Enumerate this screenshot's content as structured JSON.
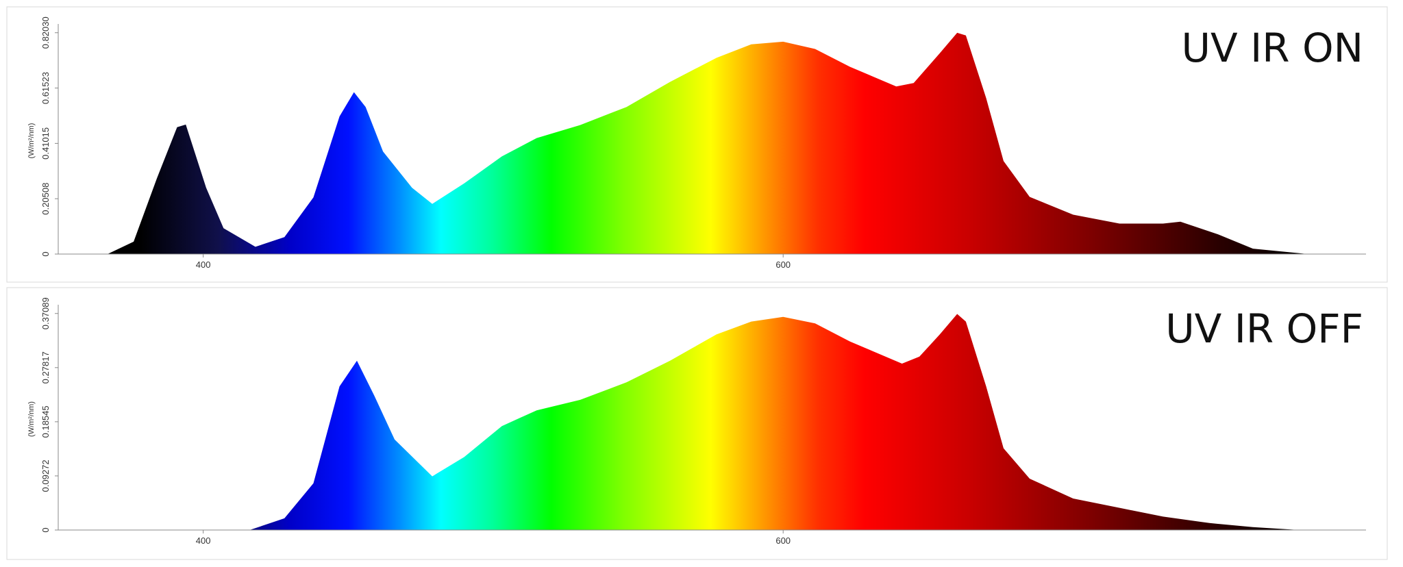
{
  "chart_data": [
    {
      "type": "area",
      "annotation": "UV IR ON",
      "ylabel": "(W/m²/nm)",
      "x": [
        367,
        376,
        384,
        391,
        394,
        401,
        407,
        418,
        428,
        438,
        447,
        452,
        456,
        462,
        472,
        479,
        490,
        503,
        515,
        530,
        546,
        561,
        577,
        589,
        600,
        611,
        623,
        639,
        645,
        654,
        660,
        663,
        670,
        676,
        685,
        700,
        716,
        731,
        737,
        750,
        762,
        778,
        781
      ],
      "values": [
        0,
        0.046,
        0.28,
        0.47,
        0.48,
        0.246,
        0.096,
        0.027,
        0.063,
        0.21,
        0.51,
        0.6,
        0.545,
        0.38,
        0.246,
        0.186,
        0.262,
        0.362,
        0.43,
        0.478,
        0.545,
        0.638,
        0.727,
        0.777,
        0.787,
        0.76,
        0.694,
        0.621,
        0.634,
        0.744,
        0.82,
        0.81,
        0.578,
        0.345,
        0.212,
        0.146,
        0.113,
        0.113,
        0.12,
        0.073,
        0.02,
        0.003,
        0
      ],
      "xlim": [
        350,
        801
      ],
      "xticks": [
        400,
        600
      ],
      "ylim": [
        0,
        0.84
      ],
      "yticks": [
        0,
        0.20508,
        0.41015,
        0.61523,
        {
          "value": 0.8203,
          "label": "0.82030"
        }
      ]
    },
    {
      "type": "area",
      "annotation": "UV IR OFF",
      "ylabel": "(W/m²/nm)",
      "x": [
        416,
        428,
        438,
        447,
        453,
        459,
        466,
        479,
        490,
        503,
        515,
        530,
        546,
        561,
        577,
        589,
        600,
        611,
        623,
        641,
        647,
        654,
        660,
        663,
        670,
        676,
        685,
        700,
        716,
        731,
        747,
        762,
        778
      ],
      "values": [
        0,
        0.02,
        0.08,
        0.246,
        0.29,
        0.23,
        0.155,
        0.092,
        0.125,
        0.178,
        0.205,
        0.223,
        0.253,
        0.29,
        0.335,
        0.357,
        0.365,
        0.354,
        0.323,
        0.285,
        0.297,
        0.335,
        0.37,
        0.357,
        0.246,
        0.14,
        0.088,
        0.054,
        0.038,
        0.023,
        0.012,
        0.005,
        0
      ],
      "xlim": [
        350,
        801
      ],
      "xticks": [
        400,
        600
      ],
      "ylim": [
        0,
        0.38
      ],
      "yticks": [
        0,
        0.09272,
        0.18545,
        0.27817,
        0.37089
      ]
    }
  ],
  "color_stops": [
    {
      "x": 378,
      "color": "#000000"
    },
    {
      "x": 405,
      "color": "#10104a"
    },
    {
      "x": 430,
      "color": "#0000c8"
    },
    {
      "x": 450,
      "color": "#0010ff"
    },
    {
      "x": 468,
      "color": "#0090ff"
    },
    {
      "x": 482,
      "color": "#00ffff"
    },
    {
      "x": 500,
      "color": "#00ff99"
    },
    {
      "x": 520,
      "color": "#00ff00"
    },
    {
      "x": 545,
      "color": "#80ff00"
    },
    {
      "x": 575,
      "color": "#ffff00"
    },
    {
      "x": 592,
      "color": "#ffa000"
    },
    {
      "x": 612,
      "color": "#ff3000"
    },
    {
      "x": 628,
      "color": "#ff0000"
    },
    {
      "x": 665,
      "color": "#c80000"
    },
    {
      "x": 705,
      "color": "#800000"
    },
    {
      "x": 750,
      "color": "#2a0000"
    },
    {
      "x": 780,
      "color": "#000000"
    }
  ]
}
